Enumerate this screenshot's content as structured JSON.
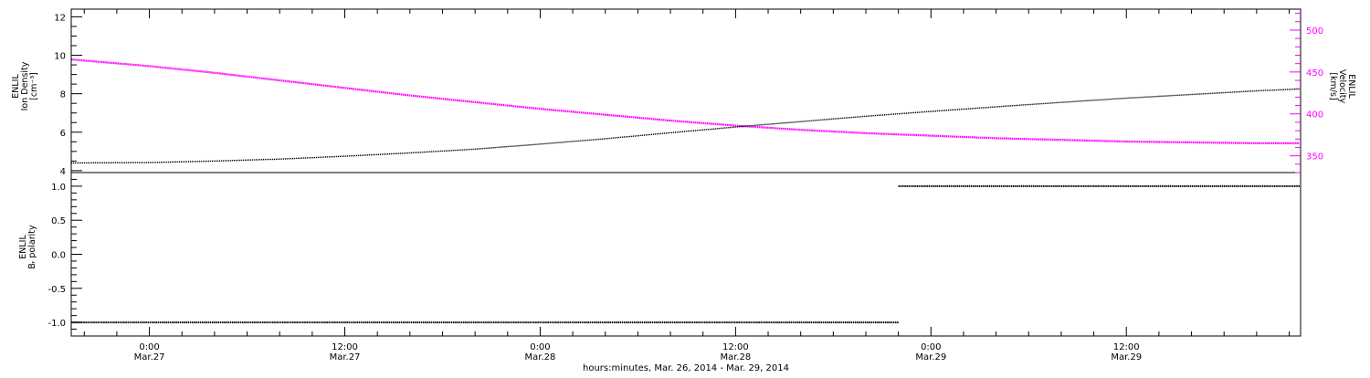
{
  "colors": {
    "density": "#000000",
    "velocity": "#ff00ff",
    "polarity": "#000000",
    "frame": "#000000"
  },
  "chart_data": [
    {
      "panel": "top",
      "type": "line",
      "x_unit": "hours since Mar.26 00:00",
      "xlim": [
        19.2,
        94.7
      ],
      "y_left": {
        "label_lines": [
          "ENLIL",
          "Ion Density",
          "[cm⁻³]"
        ],
        "ylim": [
          3.9,
          12.4
        ],
        "ticks": [
          4,
          6,
          8,
          10,
          12
        ]
      },
      "y_right": {
        "label_lines": [
          "ENLIL",
          "Velocity",
          "[km/s]"
        ],
        "ylim": [
          330,
          525
        ],
        "ticks": [
          350,
          400,
          450,
          500
        ]
      },
      "series": [
        {
          "axis": "left",
          "x": [
            19.2,
            24,
            28,
            32,
            36,
            40,
            44,
            48,
            52,
            56,
            60,
            64,
            68,
            72,
            76,
            80,
            84,
            88,
            92,
            94.7
          ],
          "y": [
            4.4,
            4.42,
            4.5,
            4.6,
            4.75,
            4.92,
            5.12,
            5.38,
            5.66,
            5.97,
            6.27,
            6.55,
            6.83,
            7.08,
            7.32,
            7.55,
            7.77,
            7.96,
            8.15,
            8.25
          ]
        },
        {
          "axis": "right",
          "x": [
            19.2,
            24,
            28,
            32,
            36,
            40,
            44,
            48,
            52,
            56,
            60,
            64,
            68,
            72,
            76,
            80,
            84,
            88,
            92,
            94.7
          ],
          "y": [
            465,
            457,
            449,
            440,
            431,
            422,
            414,
            406,
            399,
            392,
            386,
            381,
            377,
            374,
            371,
            369,
            367,
            366,
            365,
            365
          ]
        }
      ]
    },
    {
      "panel": "bottom",
      "type": "line",
      "x_unit": "hours since Mar.26 00:00",
      "xlim": [
        19.2,
        94.7
      ],
      "y_left": {
        "label_lines": [
          "ENLIL",
          "Bᵣ polarity"
        ],
        "ylim": [
          -1.2,
          1.2
        ],
        "ticks": [
          -1.0,
          -0.5,
          0.0,
          0.5,
          1.0
        ],
        "tick_labels": [
          "-1.0",
          "-0.5",
          "0.0",
          "0.5",
          "1.0"
        ]
      },
      "series": [
        {
          "x": [
            19.2,
            70.0
          ],
          "y": [
            -1.0,
            -1.0
          ]
        },
        {
          "x": [
            70.0,
            94.7
          ],
          "y": [
            1.0,
            1.0
          ]
        }
      ]
    }
  ],
  "x_axis": {
    "ticks": [
      {
        "x": 24,
        "time": "0:00",
        "date": "Mar.27"
      },
      {
        "x": 36,
        "time": "12:00",
        "date": "Mar.27"
      },
      {
        "x": 48,
        "time": "0:00",
        "date": "Mar.28"
      },
      {
        "x": 60,
        "time": "12:00",
        "date": "Mar.28"
      },
      {
        "x": 72,
        "time": "0:00",
        "date": "Mar.29"
      },
      {
        "x": 84,
        "time": "12:00",
        "date": "Mar.29"
      }
    ],
    "title": "hours:minutes, Mar. 26, 2014 - Mar. 29, 2014"
  }
}
